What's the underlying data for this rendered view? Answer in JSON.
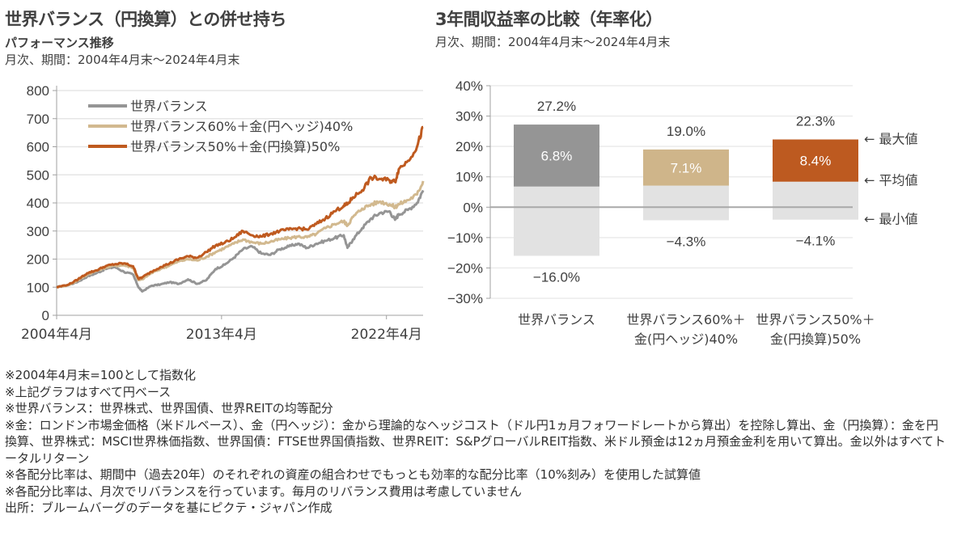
{
  "left": {
    "title": "世界バランス（円換算）との併せ持ち",
    "subtitle": "パフォーマンス推移",
    "period": "月次、期間：2004年4月末～2024年4月末"
  },
  "right": {
    "title": "3年間収益率の比較（年率化）",
    "period": "月次、期間：2004年4月末～2024年4月末"
  },
  "colors": {
    "gray": "#959595",
    "tan": "#D2B98F",
    "orange": "#BF5A1F",
    "bar_gray": "#959595",
    "bar_tan": "#CFB58A",
    "bar_orange": "#BD5A20",
    "bar_min": "#E2E2E2"
  },
  "chart_data": [
    {
      "type": "line",
      "title": "パフォーマンス推移",
      "xlabel": "",
      "ylabel": "",
      "ylim": [
        0,
        800
      ],
      "yticks": [
        0,
        100,
        200,
        300,
        400,
        500,
        600,
        700,
        800
      ],
      "xticks": [
        "2004年4月",
        "2013年4月",
        "2022年4月"
      ],
      "xrange": [
        2004.33,
        2024.33
      ],
      "grid": true,
      "legend_position": "top-left",
      "x": [
        2004.33,
        2005.0,
        2005.5,
        2006.0,
        2006.5,
        2007.0,
        2007.5,
        2008.0,
        2008.5,
        2008.8,
        2009.0,
        2009.5,
        2010.0,
        2010.5,
        2011.0,
        2011.5,
        2012.0,
        2012.5,
        2013.0,
        2013.5,
        2014.0,
        2014.5,
        2015.0,
        2015.5,
        2016.0,
        2016.5,
        2017.0,
        2017.5,
        2018.0,
        2018.5,
        2019.0,
        2019.5,
        2020.0,
        2020.2,
        2020.5,
        2021.0,
        2021.5,
        2022.0,
        2022.5,
        2022.8,
        2023.0,
        2023.5,
        2024.0,
        2024.33
      ],
      "series": [
        {
          "name": "世界バランス",
          "color_key": "gray",
          "values": [
            100,
            108,
            120,
            138,
            150,
            165,
            172,
            155,
            145,
            100,
            85,
            105,
            110,
            118,
            112,
            128,
            112,
            125,
            165,
            180,
            205,
            235,
            245,
            220,
            215,
            235,
            245,
            255,
            240,
            255,
            265,
            275,
            285,
            240,
            270,
            310,
            345,
            365,
            370,
            340,
            360,
            375,
            400,
            445
          ]
        },
        {
          "name": "世界バランス60%＋金(円ヘッジ)40%",
          "color_key": "tan",
          "values": [
            100,
            108,
            125,
            145,
            158,
            170,
            177,
            178,
            170,
            125,
            128,
            150,
            165,
            178,
            192,
            200,
            195,
            208,
            225,
            240,
            255,
            270,
            260,
            255,
            262,
            270,
            275,
            280,
            278,
            290,
            310,
            325,
            335,
            320,
            350,
            380,
            395,
            405,
            395,
            385,
            395,
            410,
            430,
            478
          ]
        },
        {
          "name": "世界バランス50%＋金(円換算)50%",
          "color_key": "orange",
          "values": [
            100,
            110,
            128,
            150,
            160,
            175,
            182,
            185,
            175,
            130,
            135,
            155,
            172,
            185,
            200,
            210,
            205,
            225,
            248,
            258,
            275,
            300,
            285,
            280,
            290,
            300,
            305,
            310,
            305,
            325,
            345,
            370,
            390,
            395,
            420,
            445,
            490,
            485,
            480,
            475,
            520,
            550,
            600,
            670
          ]
        }
      ]
    },
    {
      "type": "bar",
      "title": "3年間収益率の比較（年率化）",
      "ylim": [
        -30,
        40
      ],
      "yticks": [
        "-30%",
        "-20%",
        "-10%",
        "0%",
        "10%",
        "20%",
        "30%",
        "40%"
      ],
      "ytick_values": [
        -30,
        -20,
        -10,
        0,
        10,
        20,
        30,
        40
      ],
      "grid": true,
      "categories": [
        "世界バランス",
        "世界バランス60%＋\n金(円ヘッジ)40%",
        "世界バランス50%＋\n金(円換算)50%"
      ],
      "category_lines": [
        [
          "世界バランス"
        ],
        [
          "世界バランス60%＋",
          "金(円ヘッジ)40%"
        ],
        [
          "世界バランス50%＋",
          "金(円換算)50%"
        ]
      ],
      "series": [
        {
          "name": "最大値",
          "values": [
            27.2,
            19.0,
            22.3
          ],
          "labels": [
            "27.2%",
            "19.0%",
            "22.3%"
          ]
        },
        {
          "name": "平均値",
          "values": [
            6.8,
            7.1,
            8.4
          ],
          "labels": [
            "6.8%",
            "7.1%",
            "8.4%"
          ]
        },
        {
          "name": "最小値",
          "values": [
            -16.0,
            -4.3,
            -4.1
          ],
          "labels": [
            "-16.0%",
            "-4.3%",
            "-4.1%"
          ]
        }
      ],
      "bar_color_keys": [
        "bar_gray",
        "bar_tan",
        "bar_orange"
      ],
      "annotations": [
        "← 最大値",
        "← 平均値",
        "← 最小値"
      ]
    }
  ],
  "notes": [
    "※2004年4月末=100として指数化",
    "※上記グラフはすべて円ベース",
    "※世界バランス：世界株式、世界国債、世界REITの均等配分",
    "※金：ロンドン市場金価格（米ドルベース）、金（円ヘッジ）：金から理論的なヘッジコスト（ドル円1ヵ月フォワードレートから算出）を控除し算出、金（円換算）：金を円換算、世界株式：MSCI世界株価指数、世界国債：FTSE世界国債指数、世界REIT：S&PグローバルREIT指数、米ドル預金は12ヵ月預金金利を用いて算出。金以外はすべてトータルリターン",
    "※各配分比率は、期間中（過去20年）のそれぞれの資産の組合わせでもっとも効率的な配分比率（10%刻み）を使用した試算値",
    "※各配分比率は、月次でリバランスを行っています。毎月のリバランス費用は考慮していません",
    "出所：ブルームバーグのデータを基にピクテ・ジャパン作成"
  ]
}
